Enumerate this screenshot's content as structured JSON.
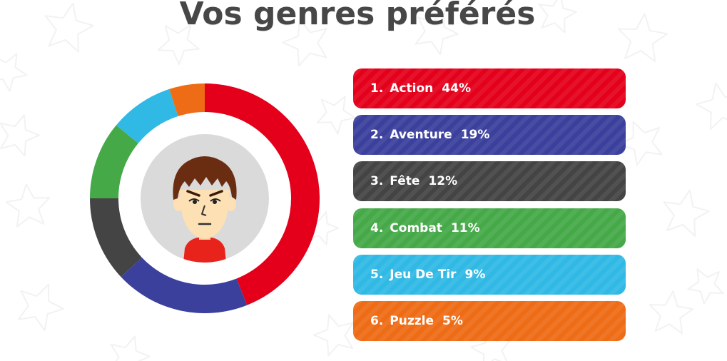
{
  "header": {
    "title": "Vos genres préférés"
  },
  "avatar": {
    "icon": "mii-avatar-icon",
    "background": "#dadada",
    "shirt_color": "#e8231c",
    "hair_color": "#6b2d12",
    "skin_color": "#fde0b4"
  },
  "genres": [
    {
      "rank": "1.",
      "name": "Action",
      "percent_label": "44%",
      "percent": 44,
      "color": "#e4001b"
    },
    {
      "rank": "2.",
      "name": "Aventure",
      "percent_label": "19%",
      "percent": 19,
      "color": "#3a409c"
    },
    {
      "rank": "3.",
      "name": "Fête",
      "percent_label": "12%",
      "percent": 12,
      "color": "#444444"
    },
    {
      "rank": "4.",
      "name": "Combat",
      "percent_label": "11%",
      "percent": 11,
      "color": "#45a948"
    },
    {
      "rank": "5.",
      "name": "Jeu De Tir",
      "percent_label": "9%",
      "percent": 9,
      "color": "#30b9e5"
    },
    {
      "rank": "6.",
      "name": "Puzzle",
      "percent_label": "5%",
      "percent": 5,
      "color": "#ee6c15"
    }
  ],
  "chart_data": {
    "type": "pie",
    "variant": "donut",
    "categories": [
      "Action",
      "Aventure",
      "Fête",
      "Combat",
      "Jeu De Tir",
      "Puzzle"
    ],
    "values": [
      44,
      19,
      12,
      11,
      9,
      5
    ],
    "colors": [
      "#e4001b",
      "#3a409c",
      "#444444",
      "#45a948",
      "#30b9e5",
      "#ee6c15"
    ],
    "start": "top",
    "direction": "clockwise"
  },
  "background": {
    "pattern": "star-outline-pattern",
    "color": "#ffffff",
    "pattern_color": "#f2f2f2"
  }
}
